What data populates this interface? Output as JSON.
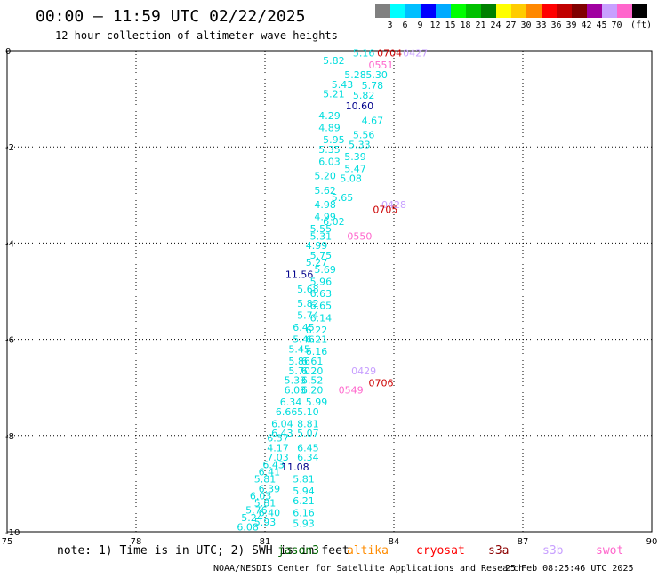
{
  "header": {
    "title": "00:00 – 11:59 UTC 02/22/2025",
    "subtitle": "12 hour collection of altimeter wave heights"
  },
  "legend": {
    "colors": [
      "#808080",
      "#00ffff",
      "#00bfff",
      "#0000ff",
      "#00aaff",
      "#00ff00",
      "#00c000",
      "#008000",
      "#ffff00",
      "#ffcc00",
      "#ff8800",
      "#ff0000",
      "#c00000",
      "#800000",
      "#a000a0",
      "#c8a0ff",
      "#ff66cc",
      "#000000"
    ],
    "levels": [
      "3",
      "6",
      "9",
      "12",
      "15",
      "18",
      "21",
      "24",
      "27",
      "30",
      "33",
      "36",
      "39",
      "42",
      "45",
      "70"
    ],
    "unit": "(ft)"
  },
  "map": {
    "x_ticks": [
      "75",
      "78",
      "81",
      "84",
      "87",
      "90"
    ],
    "y_ticks": [
      "0",
      "-2",
      "-4",
      "-6",
      "-8",
      "-10"
    ]
  },
  "chart_data": {
    "type": "scatter",
    "description_units": "longitude (deg E) vs latitude (deg)",
    "xlim": [
      75,
      90
    ],
    "ylim": [
      -10,
      0
    ],
    "satellites": [
      {
        "name": "jason3",
        "color": "#006400"
      },
      {
        "name": "altika",
        "color": "#ff8c00"
      },
      {
        "name": "cryosat",
        "color": "#ff0000"
      },
      {
        "name": "s3a",
        "color": "#8b0000"
      },
      {
        "name": "s3b",
        "color": "#c8a0ff"
      },
      {
        "name": "swot",
        "color": "#ff66cc"
      }
    ],
    "track_labels": [
      {
        "lon": 83.3,
        "lat": -0.05,
        "text": "5.16",
        "color": "#00dddd"
      },
      {
        "lon": 83.9,
        "lat": -0.05,
        "text": "0704",
        "color": "#cc0000"
      },
      {
        "lon": 84.5,
        "lat": -0.05,
        "text": "0427",
        "color": "#c8a0ff"
      },
      {
        "lon": 83.7,
        "lat": -0.3,
        "text": "0551",
        "color": "#ff66cc"
      },
      {
        "lon": 82.6,
        "lat": -0.2,
        "text": "5.82",
        "color": "#00dddd"
      },
      {
        "lon": 83.1,
        "lat": -0.5,
        "text": "5.28",
        "color": "#00dddd"
      },
      {
        "lon": 83.6,
        "lat": -0.5,
        "text": "5.30",
        "color": "#00dddd"
      },
      {
        "lon": 82.8,
        "lat": -0.7,
        "text": "5.43",
        "color": "#00dddd"
      },
      {
        "lon": 83.5,
        "lat": -0.72,
        "text": "5.78",
        "color": "#00dddd"
      },
      {
        "lon": 82.6,
        "lat": -0.9,
        "text": "5.21",
        "color": "#00dddd"
      },
      {
        "lon": 83.3,
        "lat": -0.92,
        "text": "5.82",
        "color": "#00dddd"
      },
      {
        "lon": 83.2,
        "lat": -1.15,
        "text": "10.60",
        "color": "#00008b"
      },
      {
        "lon": 82.5,
        "lat": -1.35,
        "text": "4.29",
        "color": "#00dddd"
      },
      {
        "lon": 83.5,
        "lat": -1.45,
        "text": "4.67",
        "color": "#00dddd"
      },
      {
        "lon": 82.5,
        "lat": -1.6,
        "text": "4.89",
        "color": "#00dddd"
      },
      {
        "lon": 83.3,
        "lat": -1.75,
        "text": "5.56",
        "color": "#00dddd"
      },
      {
        "lon": 82.6,
        "lat": -1.85,
        "text": "5.95",
        "color": "#00dddd"
      },
      {
        "lon": 83.2,
        "lat": -1.95,
        "text": "5.33",
        "color": "#00dddd"
      },
      {
        "lon": 82.5,
        "lat": -2.05,
        "text": "5.35",
        "color": "#00dddd"
      },
      {
        "lon": 83.1,
        "lat": -2.2,
        "text": "5.39",
        "color": "#00dddd"
      },
      {
        "lon": 82.5,
        "lat": -2.3,
        "text": "6.03",
        "color": "#00dddd"
      },
      {
        "lon": 83.1,
        "lat": -2.45,
        "text": "5.47",
        "color": "#00dddd"
      },
      {
        "lon": 82.4,
        "lat": -2.6,
        "text": "5.20",
        "color": "#00dddd"
      },
      {
        "lon": 83.0,
        "lat": -2.65,
        "text": "5.08",
        "color": "#00dddd"
      },
      {
        "lon": 82.4,
        "lat": -2.9,
        "text": "5.62",
        "color": "#00dddd"
      },
      {
        "lon": 82.8,
        "lat": -3.05,
        "text": "5.65",
        "color": "#00dddd"
      },
      {
        "lon": 82.4,
        "lat": -3.2,
        "text": "4.98",
        "color": "#00dddd"
      },
      {
        "lon": 84.0,
        "lat": -3.2,
        "text": "0428",
        "color": "#c8a0ff"
      },
      {
        "lon": 83.8,
        "lat": -3.3,
        "text": "0705",
        "color": "#cc0000"
      },
      {
        "lon": 82.4,
        "lat": -3.45,
        "text": "4.99",
        "color": "#00dddd"
      },
      {
        "lon": 82.6,
        "lat": -3.55,
        "text": "6.02",
        "color": "#00dddd"
      },
      {
        "lon": 82.3,
        "lat": -3.7,
        "text": "5.55",
        "color": "#00dddd"
      },
      {
        "lon": 82.3,
        "lat": -3.85,
        "text": "5.31",
        "color": "#00dddd"
      },
      {
        "lon": 83.2,
        "lat": -3.85,
        "text": "0550",
        "color": "#ff66cc"
      },
      {
        "lon": 82.2,
        "lat": -4.05,
        "text": "4.99",
        "color": "#00dddd"
      },
      {
        "lon": 82.3,
        "lat": -4.25,
        "text": "5.75",
        "color": "#00dddd"
      },
      {
        "lon": 82.2,
        "lat": -4.4,
        "text": "5.27",
        "color": "#00dddd"
      },
      {
        "lon": 82.4,
        "lat": -4.55,
        "text": "5.69",
        "color": "#00dddd"
      },
      {
        "lon": 81.8,
        "lat": -4.65,
        "text": "11.56",
        "color": "#00008b"
      },
      {
        "lon": 82.3,
        "lat": -4.8,
        "text": "5.96",
        "color": "#00dddd"
      },
      {
        "lon": 82.0,
        "lat": -4.95,
        "text": "5.68",
        "color": "#00dddd"
      },
      {
        "lon": 82.3,
        "lat": -5.05,
        "text": "6.63",
        "color": "#00dddd"
      },
      {
        "lon": 82.0,
        "lat": -5.25,
        "text": "5.82",
        "color": "#00dddd"
      },
      {
        "lon": 82.3,
        "lat": -5.3,
        "text": "6.65",
        "color": "#00dddd"
      },
      {
        "lon": 82.0,
        "lat": -5.5,
        "text": "5.74",
        "color": "#00dddd"
      },
      {
        "lon": 82.3,
        "lat": -5.55,
        "text": "6.14",
        "color": "#00dddd"
      },
      {
        "lon": 81.9,
        "lat": -5.75,
        "text": "6.45",
        "color": "#00dddd"
      },
      {
        "lon": 82.2,
        "lat": -5.8,
        "text": "6.22",
        "color": "#00dddd"
      },
      {
        "lon": 81.9,
        "lat": -6.0,
        "text": "5.46",
        "color": "#00dddd"
      },
      {
        "lon": 82.2,
        "lat": -6.0,
        "text": "6.21",
        "color": "#00dddd"
      },
      {
        "lon": 81.8,
        "lat": -6.2,
        "text": "5.45",
        "color": "#00dddd"
      },
      {
        "lon": 82.2,
        "lat": -6.25,
        "text": "6.16",
        "color": "#00dddd"
      },
      {
        "lon": 81.8,
        "lat": -6.45,
        "text": "5.86",
        "color": "#00dddd"
      },
      {
        "lon": 82.1,
        "lat": -6.45,
        "text": "6.61",
        "color": "#00dddd"
      },
      {
        "lon": 81.8,
        "lat": -6.65,
        "text": "5.70",
        "color": "#00dddd"
      },
      {
        "lon": 82.1,
        "lat": -6.65,
        "text": "6.20",
        "color": "#00dddd"
      },
      {
        "lon": 83.3,
        "lat": -6.65,
        "text": "0429",
        "color": "#c8a0ff"
      },
      {
        "lon": 81.7,
        "lat": -6.85,
        "text": "5.33",
        "color": "#00dddd"
      },
      {
        "lon": 82.1,
        "lat": -6.85,
        "text": "6.52",
        "color": "#00dddd"
      },
      {
        "lon": 83.7,
        "lat": -6.9,
        "text": "0706",
        "color": "#cc0000"
      },
      {
        "lon": 81.7,
        "lat": -7.05,
        "text": "6.08",
        "color": "#00dddd"
      },
      {
        "lon": 82.1,
        "lat": -7.05,
        "text": "6.20",
        "color": "#00dddd"
      },
      {
        "lon": 83.0,
        "lat": -7.05,
        "text": "0549",
        "color": "#ff66cc"
      },
      {
        "lon": 81.6,
        "lat": -7.3,
        "text": "6.34",
        "color": "#00dddd"
      },
      {
        "lon": 82.2,
        "lat": -7.3,
        "text": "5.99",
        "color": "#00dddd"
      },
      {
        "lon": 81.5,
        "lat": -7.5,
        "text": "6.66",
        "color": "#00dddd"
      },
      {
        "lon": 82.0,
        "lat": -7.5,
        "text": "5.10",
        "color": "#00dddd"
      },
      {
        "lon": 81.4,
        "lat": -7.75,
        "text": "6.04",
        "color": "#00dddd"
      },
      {
        "lon": 82.0,
        "lat": -7.75,
        "text": "8.81",
        "color": "#00dddd"
      },
      {
        "lon": 81.4,
        "lat": -7.95,
        "text": "6.43",
        "color": "#00dddd"
      },
      {
        "lon": 82.0,
        "lat": -7.95,
        "text": "5.07",
        "color": "#00dddd"
      },
      {
        "lon": 81.3,
        "lat": -8.05,
        "text": "6.37",
        "color": "#00dddd"
      },
      {
        "lon": 81.3,
        "lat": -8.25,
        "text": "4.17",
        "color": "#00dddd"
      },
      {
        "lon": 82.0,
        "lat": -8.25,
        "text": "6.45",
        "color": "#00dddd"
      },
      {
        "lon": 81.3,
        "lat": -8.45,
        "text": "7.03",
        "color": "#00dddd"
      },
      {
        "lon": 82.0,
        "lat": -8.45,
        "text": "6.34",
        "color": "#00dddd"
      },
      {
        "lon": 81.2,
        "lat": -8.6,
        "text": "6.43",
        "color": "#00dddd"
      },
      {
        "lon": 81.7,
        "lat": -8.65,
        "text": "11.08",
        "color": "#00008b"
      },
      {
        "lon": 81.1,
        "lat": -8.75,
        "text": "6.41",
        "color": "#00dddd"
      },
      {
        "lon": 81.0,
        "lat": -8.9,
        "text": "5.81",
        "color": "#00dddd"
      },
      {
        "lon": 81.9,
        "lat": -8.9,
        "text": "5.81",
        "color": "#00dddd"
      },
      {
        "lon": 81.1,
        "lat": -9.1,
        "text": "6.39",
        "color": "#00dddd"
      },
      {
        "lon": 81.9,
        "lat": -9.15,
        "text": "5.94",
        "color": "#00dddd"
      },
      {
        "lon": 80.9,
        "lat": -9.25,
        "text": "6.03",
        "color": "#00dddd"
      },
      {
        "lon": 81.0,
        "lat": -9.4,
        "text": "5.81",
        "color": "#00dddd"
      },
      {
        "lon": 81.9,
        "lat": -9.35,
        "text": "6.21",
        "color": "#00dddd"
      },
      {
        "lon": 80.8,
        "lat": -9.55,
        "text": "5.76",
        "color": "#00dddd"
      },
      {
        "lon": 81.1,
        "lat": -9.6,
        "text": "6.40",
        "color": "#00dddd"
      },
      {
        "lon": 81.9,
        "lat": -9.6,
        "text": "6.16",
        "color": "#00dddd"
      },
      {
        "lon": 80.7,
        "lat": -9.7,
        "text": "5.24",
        "color": "#00dddd"
      },
      {
        "lon": 81.0,
        "lat": -9.8,
        "text": "5.93",
        "color": "#00dddd"
      },
      {
        "lon": 81.9,
        "lat": -9.82,
        "text": "5.93",
        "color": "#00dddd"
      },
      {
        "lon": 80.6,
        "lat": -9.9,
        "text": "6.08",
        "color": "#00dddd"
      }
    ]
  },
  "footer": {
    "note": "note:  1) Time is in UTC; 2) SWH is in feet",
    "credit": "NOAA/NESDIS Center for Satellite Applications and Research",
    "timestamp": "25 Feb 08:25:46 UTC 2025"
  }
}
